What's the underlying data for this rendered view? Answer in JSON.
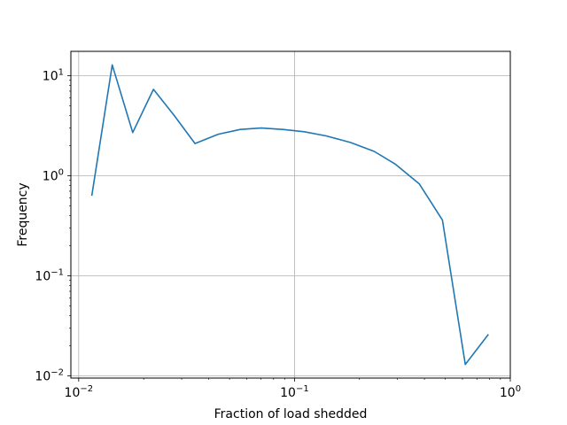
{
  "chart_data": {
    "type": "line",
    "title": "",
    "xlabel": "Fraction of load shedded",
    "ylabel": "Frequency",
    "xscale": "log",
    "yscale": "log",
    "xlim": [
      0.0092,
      1.0
    ],
    "ylim": [
      0.0095,
      17.5
    ],
    "grid": true,
    "x_ticks": [
      {
        "value": 0.01,
        "base": "10",
        "exp": "−2"
      },
      {
        "value": 0.1,
        "base": "10",
        "exp": "−1"
      },
      {
        "value": 1.0,
        "base": "10",
        "exp": "0"
      }
    ],
    "y_ticks": [
      {
        "value": 0.01,
        "base": "10",
        "exp": "−2"
      },
      {
        "value": 0.1,
        "base": "10",
        "exp": "−1"
      },
      {
        "value": 1.0,
        "base": "10",
        "exp": "0"
      },
      {
        "value": 10.0,
        "base": "10",
        "exp": "1"
      }
    ],
    "series": [
      {
        "color": "#1f77b4",
        "x": [
          0.0115,
          0.0143,
          0.0178,
          0.0222,
          0.0277,
          0.0346,
          0.0443,
          0.0561,
          0.07,
          0.0883,
          0.111,
          0.1403,
          0.1816,
          0.2342,
          0.294,
          0.3784,
          0.4849,
          0.6186,
          0.7915
        ],
        "y": [
          0.63,
          12.8,
          2.7,
          7.3,
          4.0,
          2.1,
          2.6,
          2.9,
          3.0,
          2.9,
          2.75,
          2.5,
          2.15,
          1.75,
          1.3,
          0.83,
          0.36,
          0.013,
          0.026
        ]
      }
    ]
  }
}
